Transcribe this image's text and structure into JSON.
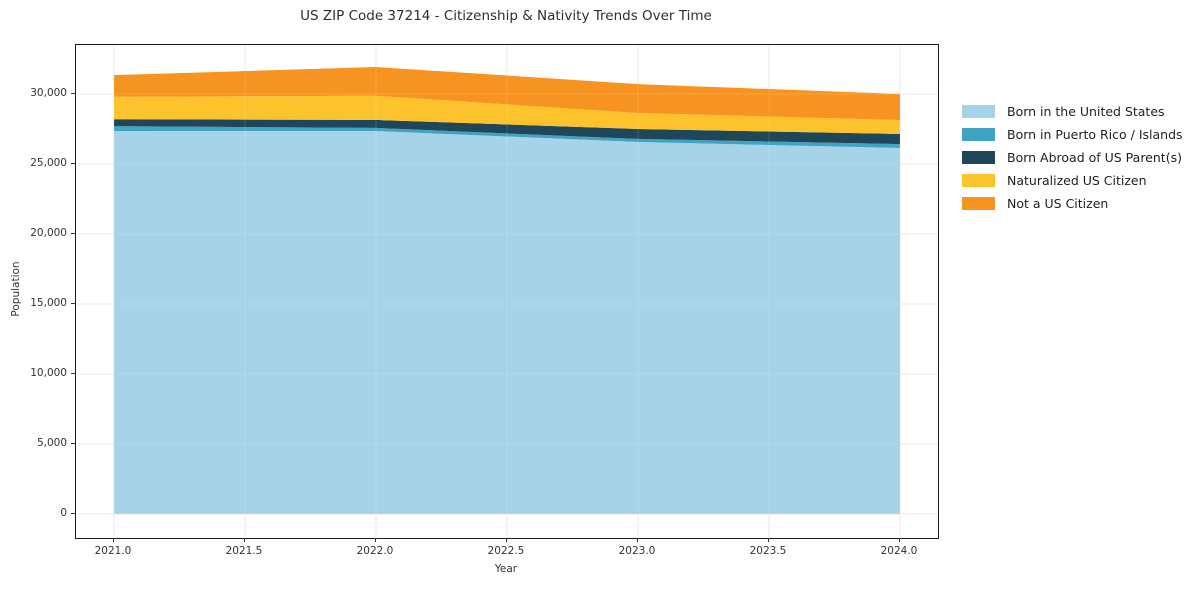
{
  "chart_data": {
    "type": "area",
    "stacked": true,
    "title": "US ZIP Code 37214 - Citizenship & Nativity Trends Over Time",
    "xlabel": "Year",
    "ylabel": "Population",
    "x": [
      2021,
      2022,
      2023,
      2024
    ],
    "series": [
      {
        "name": "Born in the United States",
        "color": "#a7d3e8",
        "values": [
          27350,
          27360,
          26570,
          26140
        ]
      },
      {
        "name": "Born in Puerto Rico / Islands",
        "color": "#41a3c2",
        "values": [
          350,
          220,
          220,
          280
        ]
      },
      {
        "name": "Born Abroad of US Parent(s)",
        "color": "#20465a",
        "values": [
          500,
          570,
          710,
          720
        ]
      },
      {
        "name": "Naturalized US Citizen",
        "color": "#fcc32d",
        "values": [
          1600,
          1720,
          1140,
          1000
        ]
      },
      {
        "name": "Not a US Citizen",
        "color": "#f79421",
        "values": [
          1550,
          2060,
          2070,
          1860
        ]
      }
    ],
    "totals": [
      31350,
      31930,
      30710,
      30000
    ],
    "xlim": [
      2020.855,
      2024.145
    ],
    "ylim": [
      -1714,
      33500
    ],
    "x_ticks": [
      {
        "value": 2021.0,
        "label": "2021.0"
      },
      {
        "value": 2021.5,
        "label": "2021.5"
      },
      {
        "value": 2022.0,
        "label": "2022.0"
      },
      {
        "value": 2022.5,
        "label": "2022.5"
      },
      {
        "value": 2023.0,
        "label": "2023.0"
      },
      {
        "value": 2023.5,
        "label": "2023.5"
      },
      {
        "value": 2024.0,
        "label": "2024.0"
      }
    ],
    "y_ticks": [
      {
        "value": 0,
        "label": "0"
      },
      {
        "value": 5000,
        "label": "5,000"
      },
      {
        "value": 10000,
        "label": "10,000"
      },
      {
        "value": 15000,
        "label": "15,000"
      },
      {
        "value": 20000,
        "label": "20,000"
      },
      {
        "value": 25000,
        "label": "25,000"
      },
      {
        "value": 30000,
        "label": "30,000"
      }
    ],
    "grid": true,
    "legend_position": "right",
    "colors": {
      "grid": "#e7e7e7",
      "spine": "#1a1a1a",
      "background": "#ffffff"
    }
  }
}
